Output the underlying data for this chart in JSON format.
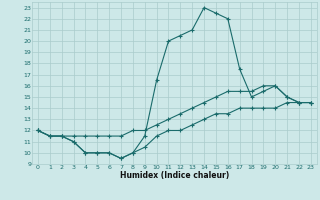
{
  "xlabel": "Humidex (Indice chaleur)",
  "bg_color": "#cde8e8",
  "grid_color": "#aacccc",
  "line_color": "#1a6b6b",
  "xlim": [
    -0.5,
    23.5
  ],
  "ylim": [
    9,
    23.5
  ],
  "xticks": [
    0,
    1,
    2,
    3,
    4,
    5,
    6,
    7,
    8,
    9,
    10,
    11,
    12,
    13,
    14,
    15,
    16,
    17,
    18,
    19,
    20,
    21,
    22,
    23
  ],
  "yticks": [
    9,
    10,
    11,
    12,
    13,
    14,
    15,
    16,
    17,
    18,
    19,
    20,
    21,
    22,
    23
  ],
  "line1_x": [
    0,
    1,
    2,
    3,
    4,
    5,
    6,
    7,
    8,
    9,
    10,
    11,
    12,
    13,
    14,
    15,
    16,
    17,
    18,
    19,
    20,
    21,
    22,
    23
  ],
  "line1_y": [
    12,
    11.5,
    11.5,
    11,
    10,
    10,
    10,
    9.5,
    10,
    10.5,
    11.5,
    12,
    12,
    12.5,
    13,
    13.5,
    13.5,
    14,
    14,
    14,
    14,
    14.5,
    14.5,
    14.5
  ],
  "line2_x": [
    0,
    1,
    2,
    3,
    4,
    5,
    6,
    7,
    8,
    9,
    10,
    11,
    12,
    13,
    14,
    15,
    16,
    17,
    18,
    19,
    20,
    21,
    22,
    23
  ],
  "line2_y": [
    12,
    11.5,
    11.5,
    11,
    10,
    10,
    10,
    9.5,
    10,
    11.5,
    16.5,
    20,
    20.5,
    21,
    23,
    22.5,
    22,
    17.5,
    15,
    15.5,
    16,
    15,
    14.5,
    14.5
  ],
  "line3_x": [
    0,
    1,
    2,
    3,
    4,
    5,
    6,
    7,
    8,
    9,
    10,
    11,
    12,
    13,
    14,
    15,
    16,
    17,
    18,
    19,
    20,
    21,
    22,
    23
  ],
  "line3_y": [
    12,
    11.5,
    11.5,
    11.5,
    11.5,
    11.5,
    11.5,
    11.5,
    12,
    12,
    12.5,
    13,
    13.5,
    14,
    14.5,
    15,
    15.5,
    15.5,
    15.5,
    16,
    16,
    15,
    14.5,
    14.5
  ]
}
